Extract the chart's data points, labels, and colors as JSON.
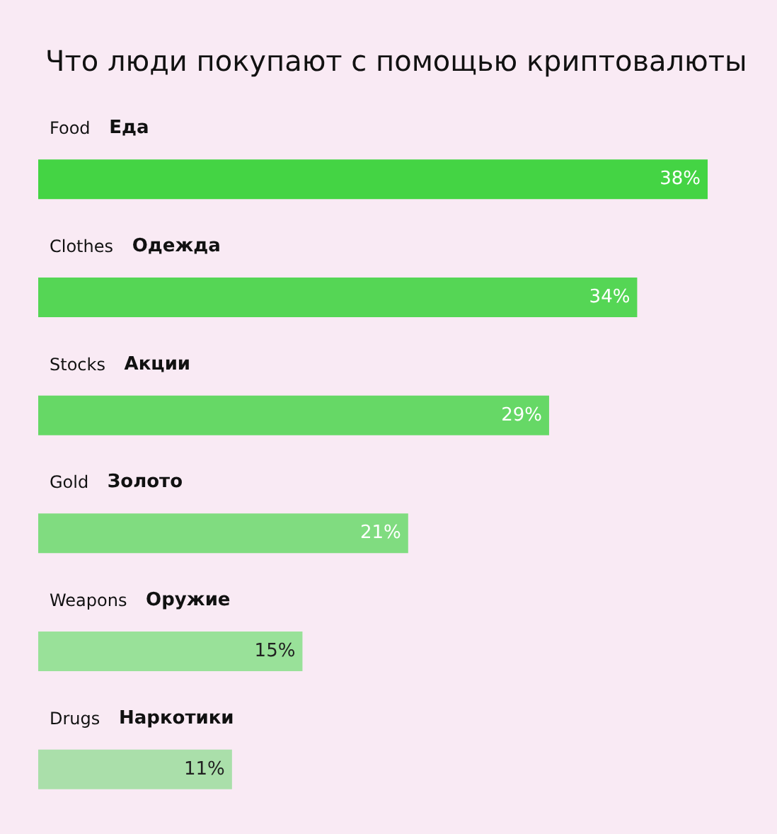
{
  "chart_data": {
    "type": "bar",
    "orientation": "horizontal",
    "title": "Что люди покупают с помощью криптовалюты",
    "categories": [
      "Food",
      "Clothes",
      "Stocks",
      "Gold",
      "Weapons",
      "Drugs"
    ],
    "values": [
      38,
      34,
      29,
      21,
      15,
      11
    ],
    "colors": [
      "#44d444",
      "#55d655",
      "#66d866",
      "#80dc80",
      "#99e199",
      "#aadfaa"
    ],
    "value_labels": [
      "38%",
      "34%",
      "29%",
      "21%",
      "15%",
      "11%"
    ],
    "annotations": [
      "Еда",
      "Одежда",
      "Акции",
      "Золото",
      "Оружие",
      "Наркотики"
    ]
  }
}
